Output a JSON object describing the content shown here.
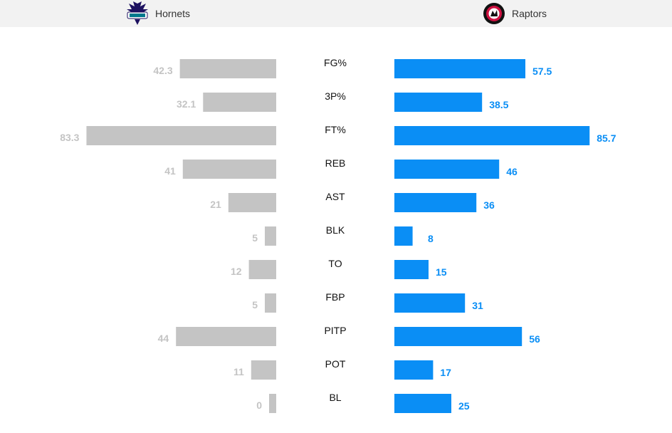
{
  "teams": {
    "home": {
      "name": "Hornets",
      "logo_icon": "hornets-logo"
    },
    "away": {
      "name": "Raptors",
      "logo_icon": "raptors-logo"
    }
  },
  "colors": {
    "home_bar": "#c4c4c4",
    "home_value": "#c4c4c4",
    "away_bar": "#0a8ef5",
    "away_value": "#0a8ef5"
  },
  "chart_data": {
    "type": "bar",
    "orientation": "horizontal-diverging",
    "categories": [
      "FG%",
      "3P%",
      "FT%",
      "REB",
      "AST",
      "BLK",
      "TO",
      "FBP",
      "PITP",
      "POT",
      "BL"
    ],
    "series": [
      {
        "name": "Hornets",
        "values": [
          42.3,
          32.1,
          83.3,
          41,
          21,
          5,
          12,
          5,
          44,
          11,
          0
        ]
      },
      {
        "name": "Raptors",
        "values": [
          57.5,
          38.5,
          85.7,
          46,
          36,
          8,
          15,
          31,
          56,
          17,
          25
        ]
      }
    ],
    "value_labels": {
      "Hornets": [
        "42.3",
        "32.1",
        "83.3",
        "41",
        "21",
        "5",
        "12",
        "5",
        "44",
        "11",
        "0"
      ],
      "Raptors": [
        "57.5",
        "38.5",
        "85.7",
        "46",
        "36",
        "8",
        "15",
        "31",
        "56",
        "17",
        "25"
      ]
    }
  }
}
